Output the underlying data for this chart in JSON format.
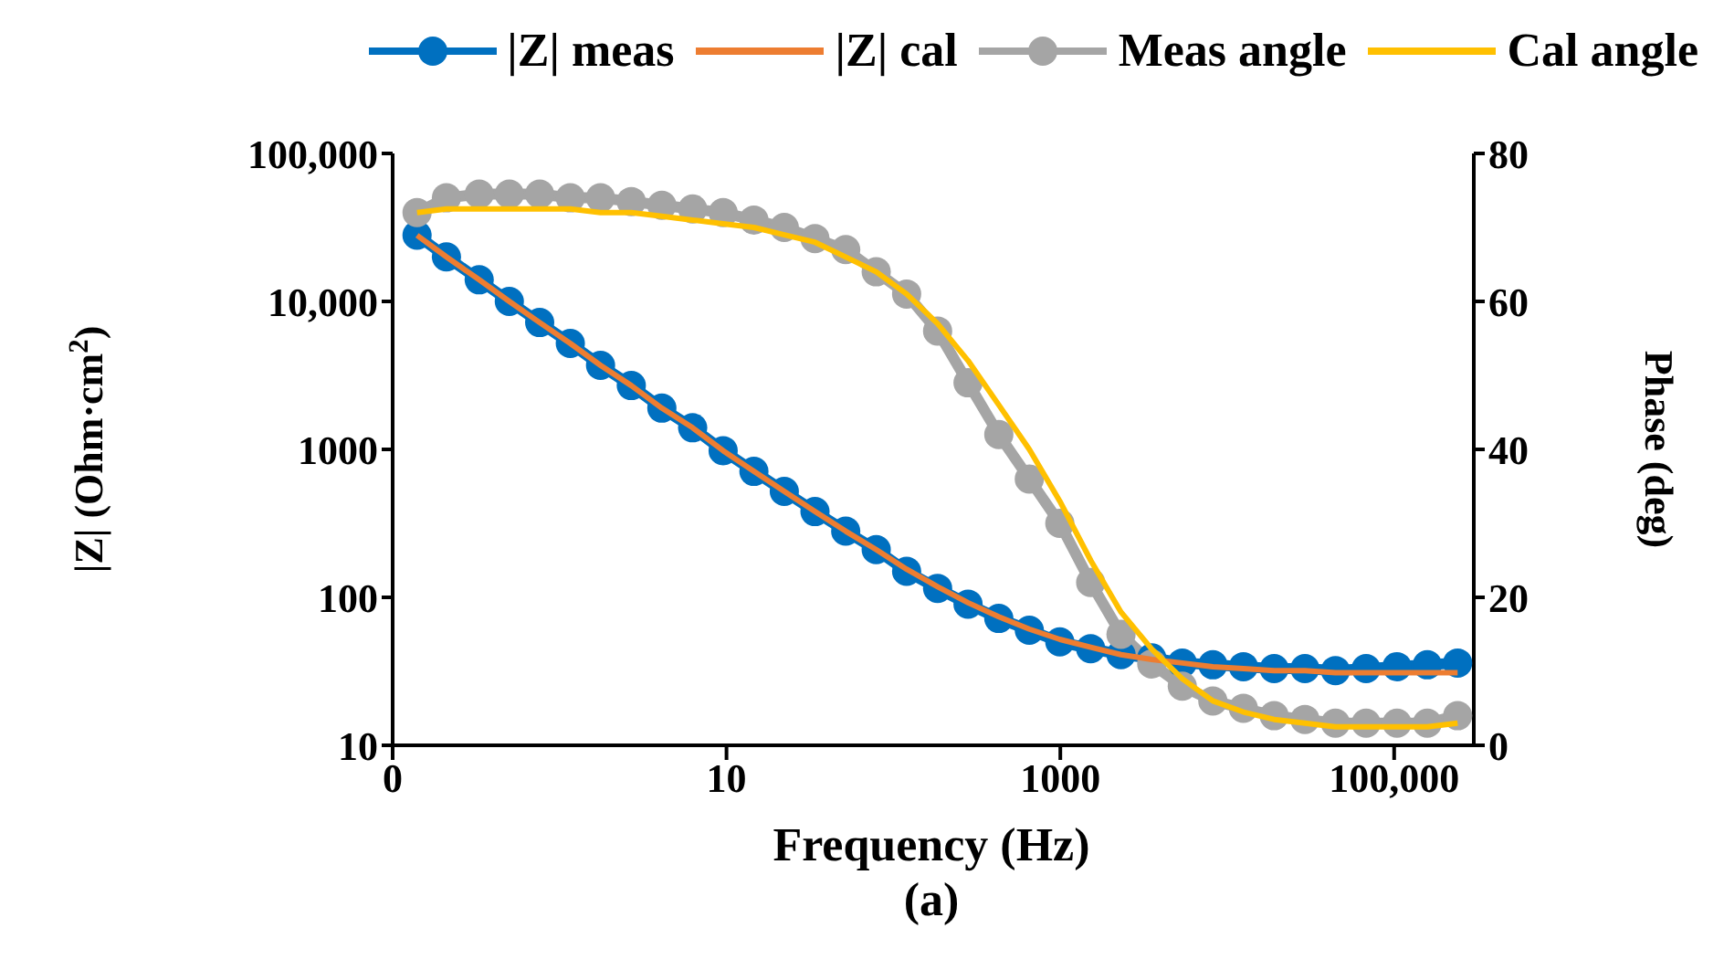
{
  "chart_data": {
    "type": "line",
    "xlabel": "Frequency (Hz)",
    "ylabel": "|Z| (Ohm·cm$^{2}$)",
    "y2label": "Phase (deg)",
    "annotations": [
      "(a)"
    ],
    "x": [
      0.14,
      0.21,
      0.33,
      0.5,
      0.76,
      1.16,
      1.76,
      2.69,
      4.1,
      6.27,
      9.55,
      14.6,
      22.2,
      33.9,
      51.8,
      78.9,
      120,
      184,
      280,
      428,
      652,
      993,
      1520,
      2310,
      3530,
      5380,
      8200,
      12500,
      19100,
      29200,
      44500,
      67900,
      104000,
      158000,
      240000
    ],
    "series": [
      {
        "name": "|Z| meas",
        "color": "#0070c0",
        "marker": "circle",
        "values": [
          28000,
          20000,
          14000,
          10000,
          7200,
          5200,
          3700,
          2700,
          1900,
          1400,
          980,
          710,
          520,
          380,
          280,
          210,
          150,
          115,
          90,
          72,
          60,
          50,
          45,
          41,
          39,
          36,
          35,
          34,
          33,
          33,
          32,
          33,
          34,
          35,
          36
        ]
      },
      {
        "name": "|Z| cal",
        "color": "#ed7d31",
        "marker": "none",
        "values": [
          28000,
          20000,
          14000,
          10000,
          7200,
          5200,
          3700,
          2700,
          1900,
          1400,
          980,
          710,
          520,
          380,
          280,
          210,
          155,
          118,
          92,
          74,
          61,
          52,
          46,
          41,
          38,
          36,
          34,
          33,
          32,
          32,
          31,
          31,
          31,
          31,
          31
        ]
      },
      {
        "name": "Meas angle",
        "color": "#a5a5a5",
        "marker": "circle",
        "axis": "y2",
        "values": [
          72,
          74,
          74.5,
          74.5,
          74.5,
          74,
          74,
          73.5,
          73,
          72.5,
          72,
          71,
          70,
          68.5,
          67,
          64,
          61,
          56,
          49,
          42,
          36,
          30,
          22,
          15,
          11,
          8,
          6,
          5,
          4,
          3.5,
          3,
          3,
          3,
          3,
          4
        ]
      },
      {
        "name": "Cal angle",
        "color": "#ffc000",
        "marker": "none",
        "axis": "y2",
        "values": [
          72,
          72.5,
          72.5,
          72.5,
          72.5,
          72.5,
          72,
          72,
          71.5,
          71,
          70.5,
          70,
          69,
          68,
          66,
          64,
          61,
          57,
          52,
          46,
          40,
          33,
          25,
          18,
          13,
          9,
          6,
          4.5,
          3.5,
          3,
          2.5,
          2.5,
          2.5,
          2.5,
          3
        ]
      }
    ],
    "log": "xy",
    "xlim": [
      0.1,
      300000
    ],
    "xticks": [
      {
        "value": 0.1,
        "label": "0"
      },
      10,
      1000,
      {
        "value": 100000,
        "label": "100,000"
      }
    ],
    "ylim": [
      10,
      100000
    ],
    "yticks": [
      10,
      100,
      1000,
      {
        "value": 10000,
        "label": "10,000"
      },
      {
        "value": 100000,
        "label": "100,000"
      }
    ],
    "y2lim": [
      0,
      80
    ],
    "y2ticks": [
      0,
      20,
      40,
      60,
      80
    ],
    "grid": false,
    "legend": "top",
    "line_style": "solid"
  }
}
